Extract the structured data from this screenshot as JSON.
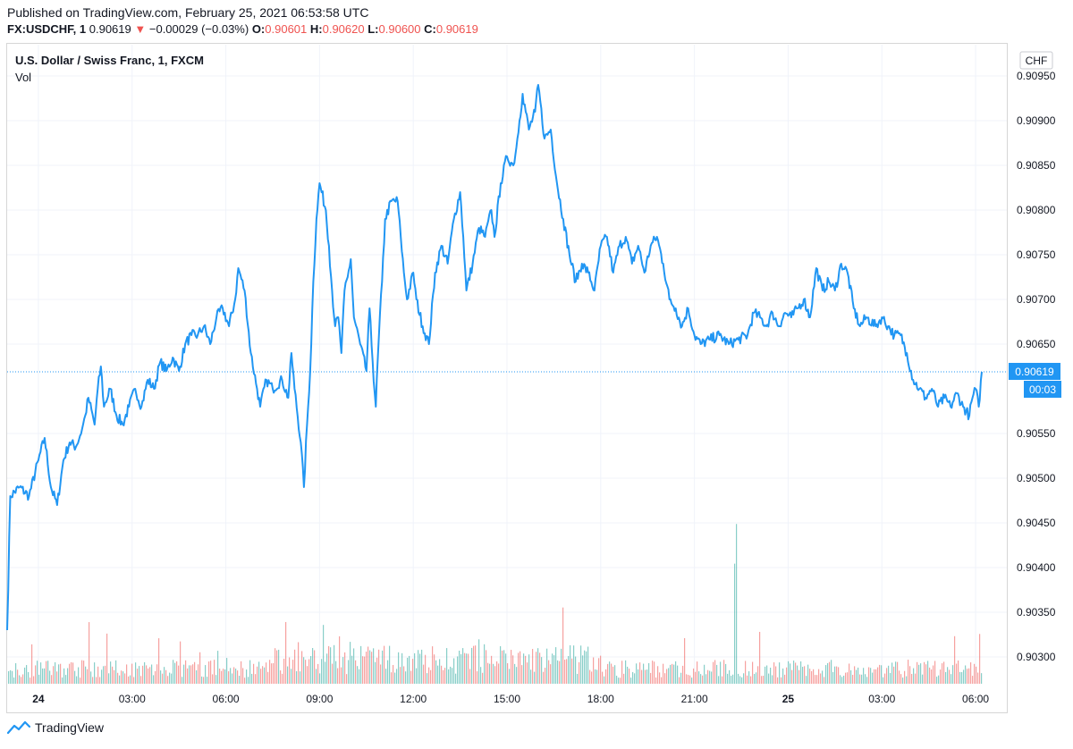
{
  "header": {
    "published": "Published on TradingView.com, February 25, 2021 06:53:58 UTC",
    "symbol": "FX:USDCHF, 1",
    "last": "0.90619",
    "down_arrow": "▼",
    "change": "−0.00029 (−0.03%)",
    "o_label": "O:",
    "o_value": "0.90601",
    "h_label": "H:",
    "h_value": "0.90620",
    "l_label": "L:",
    "l_value": "0.90600",
    "c_label": "C:",
    "c_value": "0.90619"
  },
  "chart_title": "U.S. Dollar / Swiss Franc, 1, FXCM",
  "volume_label": "Vol",
  "currency_badge": "CHF",
  "price_badge": "0.90619",
  "countdown_badge": "00:03",
  "branding": "TradingView",
  "colors": {
    "line": "#2196f3",
    "vol_up": "#26a69a",
    "vol_down": "#ef5350",
    "down": "#ef5350"
  },
  "chart_data": {
    "type": "line",
    "title": "U.S. Dollar / Swiss Franc, 1, FXCM",
    "ylim": [
      0.9027,
      0.90985
    ],
    "y_ticks": [
      "0.90300",
      "0.90350",
      "0.90400",
      "0.90450",
      "0.90500",
      "0.90550",
      "0.90650",
      "0.90700",
      "0.90750",
      "0.90800",
      "0.90850",
      "0.90900",
      "0.90950"
    ],
    "x_range": [
      -1.0,
      31.0
    ],
    "x_ticks": [
      {
        "label": "24",
        "h": 0,
        "bold": true
      },
      {
        "label": "03:00",
        "h": 3
      },
      {
        "label": "06:00",
        "h": 6
      },
      {
        "label": "09:00",
        "h": 9
      },
      {
        "label": "12:00",
        "h": 12
      },
      {
        "label": "15:00",
        "h": 15
      },
      {
        "label": "18:00",
        "h": 18
      },
      {
        "label": "21:00",
        "h": 21
      },
      {
        "label": "25",
        "h": 24,
        "bold": true
      },
      {
        "label": "03:00",
        "h": 27
      },
      {
        "label": "06:00",
        "h": 30
      }
    ],
    "last_price": 0.90619,
    "series": [
      {
        "name": "USDCHF close",
        "points": [
          [
            -1.0,
            0.9033
          ],
          [
            -0.9,
            0.9048
          ],
          [
            -0.6,
            0.9049
          ],
          [
            -0.3,
            0.9048
          ],
          [
            0.0,
            0.9052
          ],
          [
            0.2,
            0.90545
          ],
          [
            0.4,
            0.9049
          ],
          [
            0.6,
            0.9047
          ],
          [
            0.8,
            0.9052
          ],
          [
            1.0,
            0.9054
          ],
          [
            1.2,
            0.90535
          ],
          [
            1.4,
            0.90555
          ],
          [
            1.5,
            0.9057
          ],
          [
            1.6,
            0.9059
          ],
          [
            1.8,
            0.9056
          ],
          [
            1.9,
            0.906
          ],
          [
            2.0,
            0.90625
          ],
          [
            2.1,
            0.9058
          ],
          [
            2.3,
            0.906
          ],
          [
            2.5,
            0.9057
          ],
          [
            2.7,
            0.9056
          ],
          [
            2.9,
            0.9058
          ],
          [
            3.1,
            0.906
          ],
          [
            3.3,
            0.9058
          ],
          [
            3.5,
            0.9061
          ],
          [
            3.7,
            0.906
          ],
          [
            3.9,
            0.9063
          ],
          [
            4.1,
            0.9062
          ],
          [
            4.3,
            0.90635
          ],
          [
            4.5,
            0.9062
          ],
          [
            4.7,
            0.9065
          ],
          [
            4.9,
            0.9066
          ],
          [
            5.1,
            0.9066
          ],
          [
            5.3,
            0.9067
          ],
          [
            5.5,
            0.9065
          ],
          [
            5.7,
            0.9068
          ],
          [
            5.9,
            0.9069
          ],
          [
            6.1,
            0.9067
          ],
          [
            6.3,
            0.907
          ],
          [
            6.4,
            0.90735
          ],
          [
            6.6,
            0.9071
          ],
          [
            6.8,
            0.9064
          ],
          [
            7.0,
            0.906
          ],
          [
            7.1,
            0.9058
          ],
          [
            7.3,
            0.9061
          ],
          [
            7.5,
            0.906
          ],
          [
            7.8,
            0.9061
          ],
          [
            8.0,
            0.9059
          ],
          [
            8.1,
            0.9064
          ],
          [
            8.2,
            0.906
          ],
          [
            8.4,
            0.9054
          ],
          [
            8.5,
            0.9049
          ],
          [
            8.6,
            0.9056
          ],
          [
            8.7,
            0.9062
          ],
          [
            8.8,
            0.9072
          ],
          [
            8.9,
            0.9079
          ],
          [
            9.0,
            0.9083
          ],
          [
            9.2,
            0.908
          ],
          [
            9.3,
            0.9076
          ],
          [
            9.4,
            0.9071
          ],
          [
            9.5,
            0.9067
          ],
          [
            9.6,
            0.9068
          ],
          [
            9.7,
            0.9064
          ],
          [
            9.8,
            0.9071
          ],
          [
            9.9,
            0.90725
          ],
          [
            10.0,
            0.90745
          ],
          [
            10.1,
            0.9068
          ],
          [
            10.3,
            0.9065
          ],
          [
            10.5,
            0.9062
          ],
          [
            10.6,
            0.9069
          ],
          [
            10.7,
            0.9063
          ],
          [
            10.8,
            0.9058
          ],
          [
            10.9,
            0.9066
          ],
          [
            11.0,
            0.9072
          ],
          [
            11.1,
            0.9079
          ],
          [
            11.3,
            0.9081
          ],
          [
            11.5,
            0.9081
          ],
          [
            11.6,
            0.9077
          ],
          [
            11.7,
            0.9073
          ],
          [
            11.8,
            0.907
          ],
          [
            12.0,
            0.9073
          ],
          [
            12.1,
            0.907
          ],
          [
            12.3,
            0.9067
          ],
          [
            12.5,
            0.9065
          ],
          [
            12.7,
            0.9073
          ],
          [
            12.9,
            0.9076
          ],
          [
            13.1,
            0.9074
          ],
          [
            13.3,
            0.9079
          ],
          [
            13.5,
            0.9082
          ],
          [
            13.6,
            0.9077
          ],
          [
            13.7,
            0.9071
          ],
          [
            13.9,
            0.9074
          ],
          [
            14.1,
            0.9078
          ],
          [
            14.3,
            0.9077
          ],
          [
            14.5,
            0.908
          ],
          [
            14.6,
            0.9077
          ],
          [
            14.8,
            0.9083
          ],
          [
            15.0,
            0.9086
          ],
          [
            15.2,
            0.9085
          ],
          [
            15.3,
            0.9087
          ],
          [
            15.4,
            0.909
          ],
          [
            15.5,
            0.9093
          ],
          [
            15.7,
            0.9089
          ],
          [
            15.9,
            0.9091
          ],
          [
            16.0,
            0.9094
          ],
          [
            16.2,
            0.9088
          ],
          [
            16.4,
            0.9089
          ],
          [
            16.6,
            0.9083
          ],
          [
            16.8,
            0.9079
          ],
          [
            17.0,
            0.9075
          ],
          [
            17.2,
            0.9072
          ],
          [
            17.4,
            0.9074
          ],
          [
            17.6,
            0.9073
          ],
          [
            17.8,
            0.9071
          ],
          [
            18.0,
            0.9076
          ],
          [
            18.2,
            0.9077
          ],
          [
            18.4,
            0.9073
          ],
          [
            18.6,
            0.9076
          ],
          [
            18.8,
            0.9077
          ],
          [
            19.0,
            0.9074
          ],
          [
            19.2,
            0.9076
          ],
          [
            19.4,
            0.9073
          ],
          [
            19.6,
            0.9076
          ],
          [
            19.8,
            0.9077
          ],
          [
            20.0,
            0.9074
          ],
          [
            20.2,
            0.907
          ],
          [
            20.4,
            0.9069
          ],
          [
            20.6,
            0.9067
          ],
          [
            20.8,
            0.9069
          ],
          [
            21.0,
            0.9066
          ],
          [
            21.2,
            0.9065
          ],
          [
            21.5,
            0.90655
          ],
          [
            21.8,
            0.9066
          ],
          [
            22.1,
            0.9065
          ],
          [
            22.4,
            0.90655
          ],
          [
            22.7,
            0.9066
          ],
          [
            22.9,
            0.90685
          ],
          [
            23.1,
            0.9068
          ],
          [
            23.3,
            0.9067
          ],
          [
            23.5,
            0.90685
          ],
          [
            23.7,
            0.9067
          ],
          [
            23.9,
            0.90685
          ],
          [
            24.1,
            0.9068
          ],
          [
            24.3,
            0.9069
          ],
          [
            24.5,
            0.907
          ],
          [
            24.7,
            0.9068
          ],
          [
            24.9,
            0.90735
          ],
          [
            25.1,
            0.9071
          ],
          [
            25.3,
            0.9072
          ],
          [
            25.5,
            0.9071
          ],
          [
            25.7,
            0.9074
          ],
          [
            25.9,
            0.9073
          ],
          [
            26.1,
            0.9069
          ],
          [
            26.3,
            0.9067
          ],
          [
            26.5,
            0.9068
          ],
          [
            26.8,
            0.9067
          ],
          [
            27.0,
            0.9068
          ],
          [
            27.2,
            0.9067
          ],
          [
            27.4,
            0.9066
          ],
          [
            27.6,
            0.9066
          ],
          [
            27.8,
            0.9064
          ],
          [
            28.0,
            0.9061
          ],
          [
            28.2,
            0.906
          ],
          [
            28.4,
            0.9059
          ],
          [
            28.6,
            0.906
          ],
          [
            28.8,
            0.9058
          ],
          [
            29.0,
            0.9059
          ],
          [
            29.2,
            0.9058
          ],
          [
            29.4,
            0.90595
          ],
          [
            29.6,
            0.9058
          ],
          [
            29.8,
            0.9057
          ],
          [
            29.9,
            0.9059
          ],
          [
            30.0,
            0.906
          ],
          [
            30.1,
            0.9058
          ],
          [
            30.2,
            0.90619
          ]
        ]
      },
      {
        "name": "Volume",
        "type": "bar",
        "spike_x": [
          1.6,
          8.3,
          22.3
        ],
        "spike_scale": [
          0.45,
          0.3,
          1.0
        ],
        "baseline_scale": 0.15
      }
    ]
  }
}
